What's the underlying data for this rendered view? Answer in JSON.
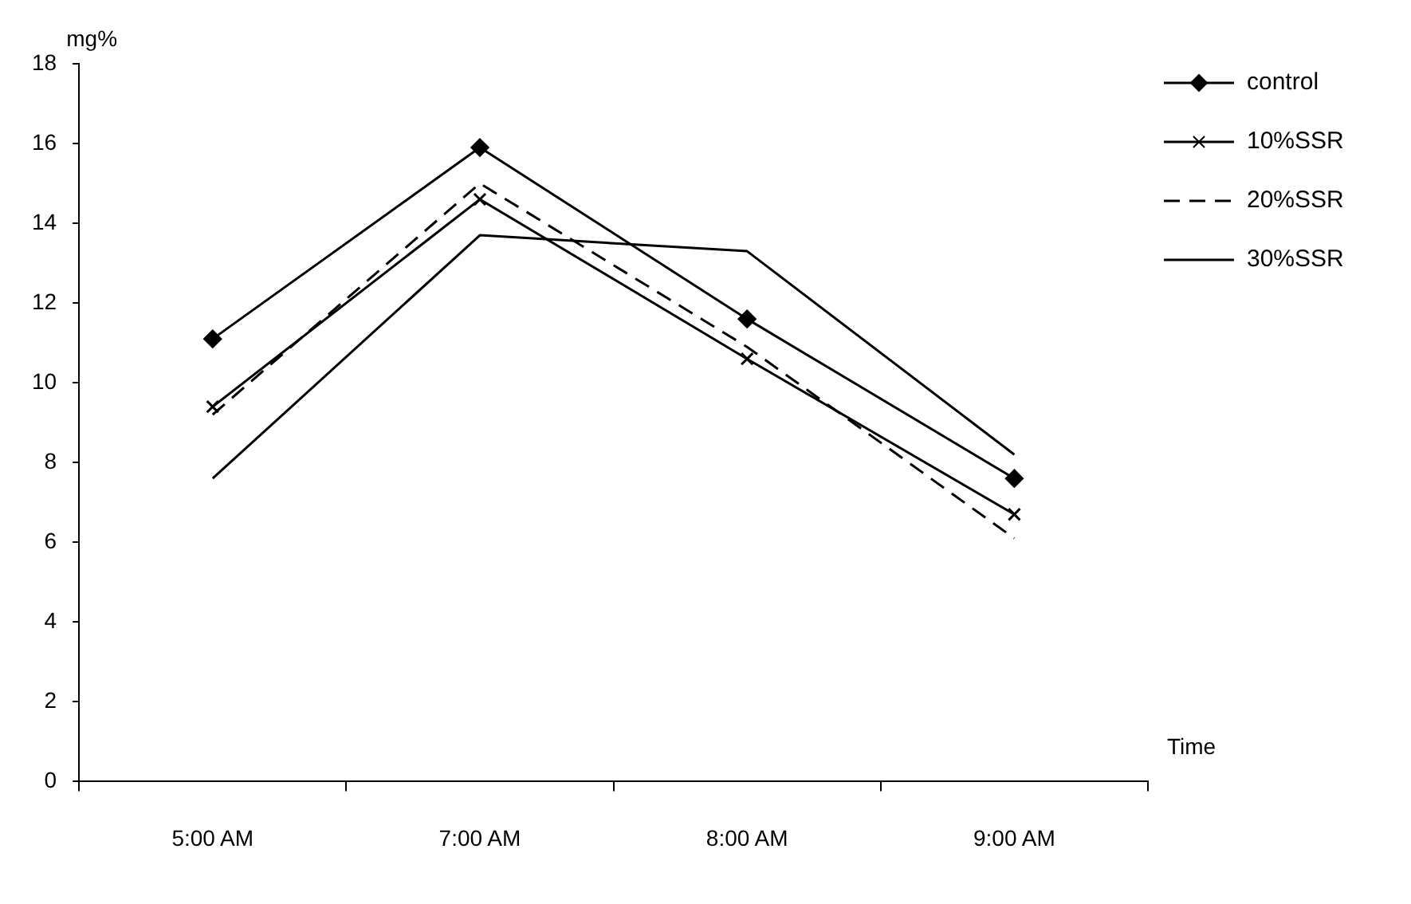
{
  "chart_data": {
    "type": "line",
    "ylabel": "mg%",
    "xlabel": "Time",
    "categories": [
      "5:00 AM",
      "7:00 AM",
      "8:00 AM",
      "9:00 AM"
    ],
    "ylim": [
      0,
      18
    ],
    "yticks": [
      0,
      2,
      4,
      6,
      8,
      10,
      12,
      14,
      16,
      18
    ],
    "grid": false,
    "legend": "right",
    "series": [
      {
        "name": "control",
        "color": "#000000",
        "marker": "diamond",
        "line_style": "solid",
        "values": [
          11.1,
          15.9,
          11.6,
          7.6
        ]
      },
      {
        "name": "10%SSR",
        "color": "#000000",
        "marker": "cross",
        "line_style": "solid",
        "values": [
          9.4,
          14.6,
          10.6,
          6.7
        ]
      },
      {
        "name": "20%SSR",
        "color": "#000000",
        "marker": "none",
        "line_style": "dashed",
        "values": [
          9.2,
          15.0,
          10.9,
          6.1
        ]
      },
      {
        "name": "30%SSR",
        "color": "#000000",
        "marker": "none",
        "line_style": "solid",
        "values": [
          7.6,
          13.7,
          13.3,
          8.2
        ]
      }
    ]
  }
}
